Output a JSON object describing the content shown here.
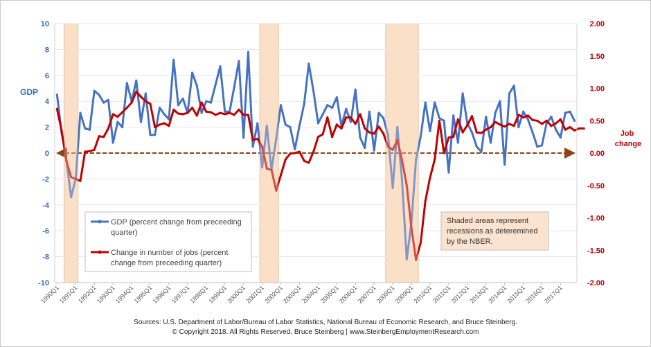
{
  "chart_data": {
    "type": "line",
    "left_axis": {
      "label": "GDP",
      "range": [
        -10,
        10
      ],
      "ticks": [
        "10",
        "8",
        "6",
        "4",
        "2",
        "0",
        "-2",
        "-4",
        "-6",
        "-8",
        "-10"
      ]
    },
    "right_axis": {
      "label": [
        "Job",
        "change"
      ],
      "range": [
        -2.0,
        2.0
      ],
      "ticks": [
        "2.00",
        "1.50",
        "1.00",
        "0.50",
        "0.00",
        "-0.50",
        "-1.00",
        "-1.50",
        "-2.00"
      ]
    },
    "x_start": "1990Q1",
    "x_ticks": [
      "1990Q1",
      "1991Q1",
      "1992Q1",
      "1993Q1",
      "1994Q1",
      "1995Q1",
      "1996Q1",
      "1997Q1",
      "1998Q1",
      "1999Q1",
      "2000Q1",
      "2001Q1",
      "2002Q1",
      "2003Q1",
      "2004Q1",
      "2005Q1",
      "2006Q1",
      "2007Q1",
      "2008Q1",
      "2009Q1",
      "2010Q1",
      "2011Q1",
      "2012Q1",
      "2013Q1",
      "2014Q1",
      "2015Q1",
      "2016Q1",
      "2017Q1"
    ],
    "recessions": [
      {
        "start": "1990Q3",
        "end": "1991Q1"
      },
      {
        "start": "2001Q1",
        "end": "2001Q4"
      },
      {
        "start": "2007Q4",
        "end": "2009Q2"
      }
    ],
    "series": [
      {
        "name": "GDP (percent change from preceeding quarter)",
        "axis": "left",
        "color": "#4472c4",
        "values": [
          4.5,
          1.5,
          -0.5,
          -3.4,
          -2.0,
          3.1,
          1.9,
          1.8,
          4.8,
          4.5,
          3.9,
          4.1,
          0.8,
          2.4,
          2.0,
          5.4,
          4.0,
          5.6,
          2.4,
          4.6,
          1.4,
          1.4,
          3.5,
          3.0,
          2.6,
          7.2,
          3.7,
          4.2,
          3.1,
          6.2,
          5.2,
          3.1,
          4.0,
          3.9,
          5.3,
          6.7,
          3.2,
          3.2,
          5.1,
          7.1,
          1.2,
          7.8,
          0.5,
          2.3,
          -1.1,
          2.1,
          -1.3,
          1.1,
          3.7,
          2.2,
          2.0,
          0.3,
          2.1,
          3.8,
          6.9,
          4.8,
          2.3,
          3.0,
          3.7,
          3.5,
          4.3,
          2.1,
          3.4,
          2.4,
          4.9,
          1.2,
          0.4,
          3.2,
          0.2,
          3.1,
          2.7,
          1.4,
          -2.7,
          2.0,
          -2.1,
          -8.2,
          -5.4,
          -0.5,
          1.3,
          3.9,
          1.7,
          3.9,
          2.7,
          2.5,
          -1.5,
          2.9,
          0.8,
          4.6,
          2.3,
          1.6,
          0.5,
          0.1,
          2.8,
          0.8,
          3.1,
          4.0,
          -0.9,
          4.6,
          5.2,
          2.0,
          3.2,
          2.6,
          1.6,
          0.5,
          0.6,
          2.3,
          2.8,
          1.8,
          1.2,
          3.1,
          3.2,
          2.5
        ]
      },
      {
        "name": "Change in number of jobs (percent change from preceeding quarter)",
        "axis": "right",
        "color": "#c00000",
        "values": [
          0.68,
          0.34,
          -0.12,
          -0.37,
          -0.4,
          -0.43,
          0.02,
          0.03,
          0.05,
          0.26,
          0.25,
          0.38,
          0.6,
          0.56,
          0.63,
          0.7,
          0.78,
          0.95,
          0.87,
          0.8,
          0.76,
          0.4,
          0.44,
          0.46,
          0.42,
          0.67,
          0.61,
          0.6,
          0.62,
          0.7,
          0.58,
          0.78,
          0.64,
          0.63,
          0.59,
          0.62,
          0.6,
          0.62,
          0.59,
          0.67,
          0.59,
          0.59,
          0.2,
          0.22,
          0.1,
          -0.24,
          -0.26,
          -0.58,
          -0.34,
          -0.1,
          -0.01,
          0.0,
          0.02,
          -0.12,
          -0.15,
          0.02,
          0.25,
          0.29,
          0.55,
          0.25,
          0.44,
          0.38,
          0.55,
          0.55,
          0.45,
          0.6,
          0.38,
          0.32,
          0.3,
          0.41,
          0.3,
          0.1,
          0.05,
          0.2,
          -0.11,
          -0.5,
          -1.15,
          -1.65,
          -1.38,
          -0.74,
          -0.38,
          -0.1,
          0.5,
          0.0,
          0.24,
          0.25,
          0.52,
          0.32,
          0.43,
          0.57,
          0.32,
          0.31,
          0.36,
          0.4,
          0.48,
          0.44,
          0.41,
          0.45,
          0.42,
          0.59,
          0.55,
          0.58,
          0.51,
          0.5,
          0.45,
          0.5,
          0.42,
          0.46,
          0.52,
          0.36,
          0.4,
          0.35,
          0.38,
          0.38
        ]
      }
    ],
    "note": [
      "Shaded areas represent",
      "recessions as deteremined",
      "by the NBER."
    ],
    "legend": [
      [
        "GDP (percent change from preceeding",
        "quarter)"
      ],
      [
        "Change in number of jobs (percent",
        "change from preceeding quarter)"
      ]
    ],
    "sources": "Sources: U.S. Department of Labor/Bureau of Labor Statistics, National Bureau of Economic Research, and Bruce Steinberg.",
    "copyright": "© Copyright 2018. All Rights Reserved. Bruce Steinberg | www.SteinbergEmploymentResearch.com"
  }
}
